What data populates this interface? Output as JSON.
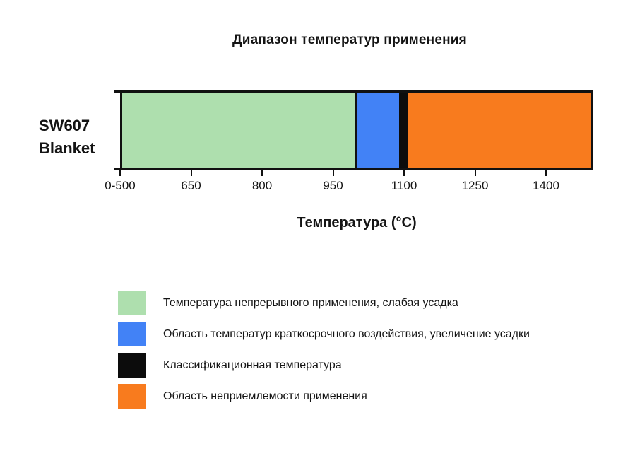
{
  "title": "Диапазон температур применения",
  "row_label": {
    "line1": "SW607",
    "line2": "Blanket"
  },
  "axis": {
    "title": "Температура (°C)"
  },
  "chart_data": {
    "type": "bar",
    "orientation": "horizontal",
    "title": "Диапазон температур применения",
    "xlabel": "Температура (°C)",
    "categories": [
      "SW607 Blanket"
    ],
    "xlim": [
      500,
      1500
    ],
    "grid": false,
    "ticks": [
      {
        "label": "0-500",
        "value": 500
      },
      {
        "label": "650",
        "value": 650
      },
      {
        "label": "800",
        "value": 800
      },
      {
        "label": "950",
        "value": 950
      },
      {
        "label": "1100",
        "value": 1100
      },
      {
        "label": "1250",
        "value": 1250
      },
      {
        "label": "1400",
        "value": 1400
      }
    ],
    "classification_temperature": 1100,
    "segments": [
      {
        "id": "continuous",
        "name": "Температура непрерывного применения, слабая усадка",
        "start": 500,
        "end": 1000,
        "color": "#aedfae"
      },
      {
        "id": "short-term",
        "name": "Область температур краткосрочного воздействия, увеличение усадки",
        "start": 1000,
        "end": 1090,
        "color": "#4282f6"
      },
      {
        "id": "classification",
        "name": "Классификационная температура",
        "start": 1090,
        "end": 1110,
        "color": "#0c0c0c"
      },
      {
        "id": "unacceptable",
        "name": "Область неприемлемости применения",
        "start": 1110,
        "end": 1500,
        "color": "#f87b1e"
      }
    ]
  },
  "legend": {
    "items": [
      {
        "id": "continuous",
        "label": "Температура непрерывного применения, слабая усадка",
        "color": "#aedfae"
      },
      {
        "id": "short-term",
        "label": "Область температур краткосрочного воздействия, увеличение усадки",
        "color": "#4282f6"
      },
      {
        "id": "classification",
        "label": "Классификационная температура",
        "color": "#0c0c0c"
      },
      {
        "id": "unacceptable",
        "label": "Область неприемлемости применения",
        "color": "#f87b1e"
      }
    ]
  }
}
